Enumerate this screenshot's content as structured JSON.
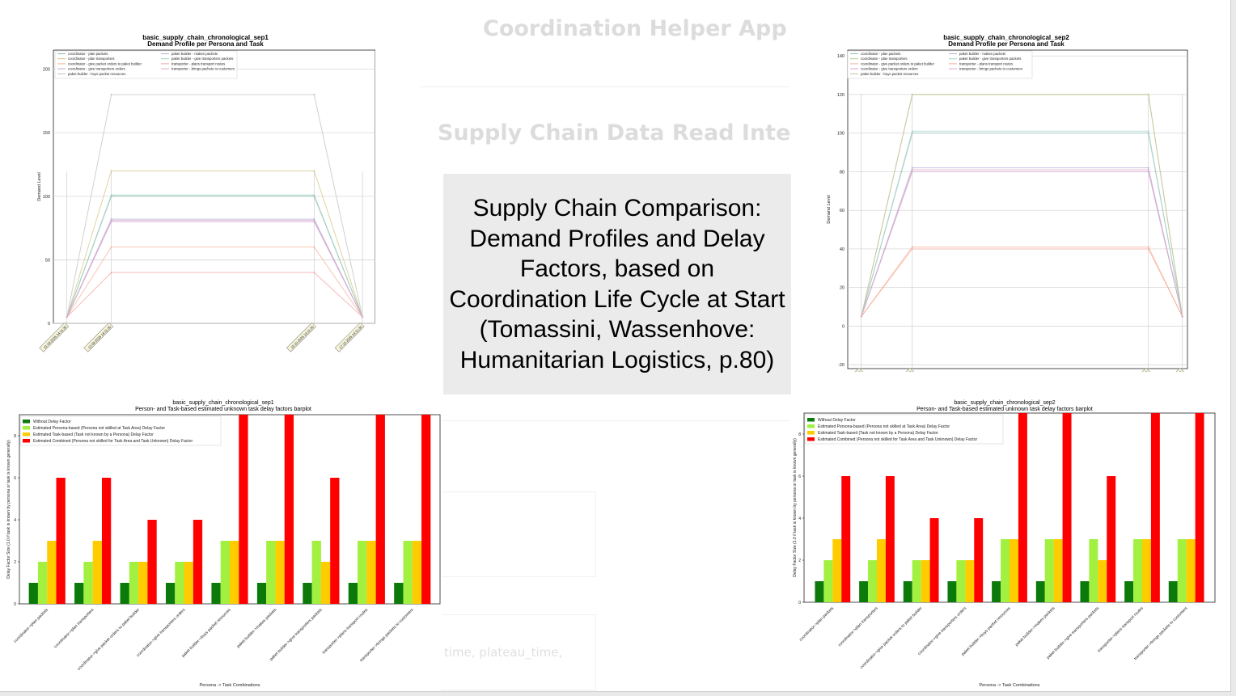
{
  "background": {
    "app_title": "Coordination Helper App",
    "section_title": "Supply Chain Data Read Interface",
    "code_fragment": "time, plateau_time,"
  },
  "caption": {
    "text": "Supply Chain Comparison: Demand Profiles and Delay Factors, based on Coordination Life Cycle at Start (Tomassini, Wassenhove: Humanitarian Logistics, p.80)"
  },
  "colors": {
    "bar_series": [
      "#0b7a0b",
      "#a2f040",
      "#ffcc00",
      "#ff0000"
    ],
    "line_series": [
      "#a6cee3",
      "#b2df8a",
      "#fb9a99",
      "#fdbf6f",
      "#cab2d6",
      "#ffff99",
      "#1f78b4",
      "#33a02c",
      "#e31a1c",
      "#ff7f00"
    ]
  },
  "chart_data": [
    {
      "type": "line",
      "title": "basic_supply_chain_chronological_sep1",
      "subtitle": "Demand Profile per Persona and Task",
      "ylabel": "Demand Level",
      "xlabel": "",
      "ylim": [
        0,
        215
      ],
      "yticks": [
        0,
        50,
        100,
        150,
        200
      ],
      "x": [
        "01.09.2025 14:11:30",
        "12.09.2025 14:11:30",
        "15.10.2025 14:11:30",
        "17.10.2025 14:11:30"
      ],
      "grid": true,
      "legend": "top-left",
      "series": [
        {
          "name": "coordinator - plan packets",
          "values": [
            5,
            100,
            100,
            5
          ]
        },
        {
          "name": "coordinator - plan transporters",
          "values": [
            5,
            120,
            120,
            5
          ]
        },
        {
          "name": "coordinator - give packet orders to paket builder",
          "values": [
            5,
            60,
            60,
            5
          ]
        },
        {
          "name": "coordinator - give transporters orders",
          "values": [
            5,
            80,
            80,
            5
          ]
        },
        {
          "name": "paket builder - buys packet resources",
          "values": [
            5,
            180,
            180,
            5
          ]
        },
        {
          "name": "paket builder - makes packets",
          "values": [
            5,
            82,
            82,
            5
          ]
        },
        {
          "name": "paket builder - give transporters packets",
          "values": [
            5,
            101,
            101,
            5
          ]
        },
        {
          "name": "transporter - plans transport routes",
          "values": [
            5,
            40,
            40,
            5
          ]
        },
        {
          "name": "transporter - brings packets to customers",
          "values": [
            5,
            81,
            81,
            5
          ]
        }
      ]
    },
    {
      "type": "line",
      "title": "basic_supply_chain_chronological_sep2",
      "subtitle": "Demand Profile per Persona and Task",
      "ylabel": "Demand Level",
      "xlabel": "",
      "ylim": [
        -22,
        143
      ],
      "yticks": [
        -20,
        0,
        20,
        40,
        60,
        80,
        100,
        120,
        140
      ],
      "x": [
        "01.09.2025 14:11:30",
        "12.09.2025 14:11:30",
        "15.10.2025 14:11:30",
        "17.10.2025 14:11:30"
      ],
      "grid": true,
      "legend": "top-left",
      "series": [
        {
          "name": "coordinator - plan packets",
          "values": [
            5,
            100,
            100,
            5
          ]
        },
        {
          "name": "coordinator - plan transporters",
          "values": [
            5,
            120,
            120,
            5
          ]
        },
        {
          "name": "coordinator - give packet orders to paket builder",
          "values": [
            5,
            40,
            40,
            5
          ]
        },
        {
          "name": "coordinator - give transporters orders",
          "values": [
            5,
            80,
            80,
            5
          ]
        },
        {
          "name": "paket builder - buys packet resources",
          "values": [
            5,
            120,
            120,
            5
          ]
        },
        {
          "name": "paket builder - makes packets",
          "values": [
            5,
            82,
            82,
            5
          ]
        },
        {
          "name": "paket builder - give transporters packets",
          "values": [
            5,
            101,
            101,
            5
          ]
        },
        {
          "name": "transporter - plans transport routes",
          "values": [
            5,
            41,
            41,
            5
          ]
        },
        {
          "name": "transporter - brings packets to customers",
          "values": [
            5,
            81,
            81,
            5
          ]
        }
      ]
    },
    {
      "type": "bar",
      "title": "basic_supply_chain_chronological_sep1",
      "subtitle": "Person- and Task-based estimated unknown task delay factors barplot",
      "xlabel": "Persona -> Task Combinations",
      "ylabel": "Delay Factor Size (1.0 if task is known by persona or task is known generally)",
      "ylim": [
        0,
        9
      ],
      "yticks": [
        0,
        2,
        4,
        6,
        8
      ],
      "legend": "top-left",
      "categories": [
        "coordinator->plan packets",
        "coordinator->plan transporters",
        "coordinator->give packet orders to paket builder",
        "coordinator->give transporters orders",
        "paket builder->buys packet resources",
        "paket builder->makes packets",
        "paket builder->give transporters packets",
        "transporter->plans transport routes",
        "transporter->brings packets to customers"
      ],
      "series": [
        {
          "name": "Without Delay Factor",
          "values": [
            1,
            1,
            1,
            1,
            1,
            1,
            1,
            1,
            1
          ]
        },
        {
          "name": "Estimated Persona-based (Persona not skilled at Task Area) Delay Factor",
          "values": [
            2,
            2,
            2,
            2,
            3,
            3,
            3,
            3,
            3
          ]
        },
        {
          "name": "Estimated Task-based (Task not known by a Persona) Delay Factor",
          "values": [
            3,
            3,
            2,
            2,
            3,
            3,
            2,
            3,
            3
          ]
        },
        {
          "name": "Estimated Combined (Persona not skilled for Task Area and Task Unknown) Delay Factor",
          "values": [
            6,
            6,
            4,
            4,
            9,
            9,
            6,
            9,
            9
          ]
        }
      ]
    },
    {
      "type": "bar",
      "title": "basic_supply_chain_chronological_sep2",
      "subtitle": "Person- and Task-based estimated unknown task delay factors barplot",
      "xlabel": "Persona -> Task Combinations",
      "ylabel": "Delay Factor Size (1.0 if task is known by persona or task is known generally)",
      "ylim": [
        0,
        9
      ],
      "yticks": [
        0,
        2,
        4,
        6,
        8
      ],
      "legend": "top-left",
      "categories": [
        "coordinator->plan packets",
        "coordinator->plan transporters",
        "coordinator->give packet orders to paket builder",
        "coordinator->give transporters orders",
        "paket builder->buys packet resources",
        "paket builder->makes packets",
        "paket builder->give transporters packets",
        "transporter->plans transport routes",
        "transporter->brings packets to customers"
      ],
      "series": [
        {
          "name": "Without Delay Factor",
          "values": [
            1,
            1,
            1,
            1,
            1,
            1,
            1,
            1,
            1
          ]
        },
        {
          "name": "Estimated Persona-based (Persona not skilled at Task Area) Delay Factor",
          "values": [
            2,
            2,
            2,
            2,
            3,
            3,
            3,
            3,
            3
          ]
        },
        {
          "name": "Estimated Task-based (Task not known by a Persona) Delay Factor",
          "values": [
            3,
            3,
            2,
            2,
            3,
            3,
            2,
            3,
            3
          ]
        },
        {
          "name": "Estimated Combined (Persona not skilled for Task Area and Task Unknown) Delay Factor",
          "values": [
            6,
            6,
            4,
            4,
            9,
            9,
            6,
            9,
            9
          ]
        }
      ]
    }
  ]
}
